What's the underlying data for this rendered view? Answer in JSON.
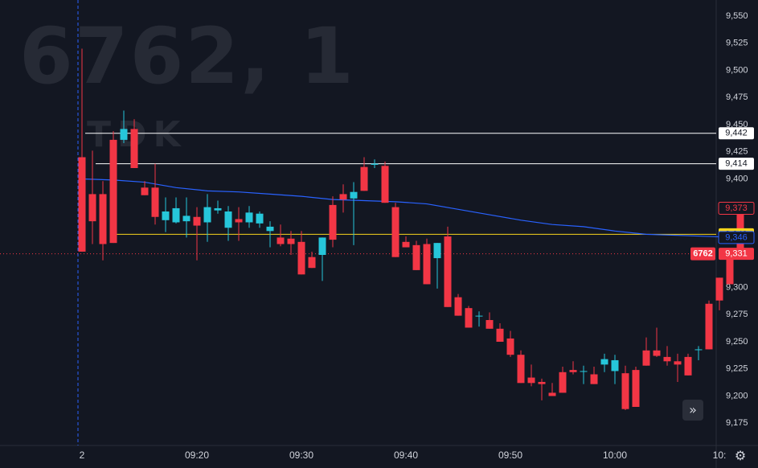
{
  "watermark": {
    "symbol": "6762, 1",
    "name": "TDK"
  },
  "colors": {
    "background": "#131722",
    "up": "#26c6da",
    "down": "#f23645",
    "ma": "#2962ff",
    "hline": "#ffffff",
    "yellow_line": "#f7d51d",
    "grid": "#1e222d",
    "text": "#d1d4dc"
  },
  "chart_data": {
    "type": "candlestick",
    "interval_minutes": 1,
    "y_range": [
      9160,
      9565
    ],
    "y_ticks": [
      "9,550",
      "9,525",
      "9,500",
      "9,475",
      "9,450",
      "9,425",
      "9,400",
      "9,300",
      "9,275",
      "9,250",
      "9,225",
      "9,200",
      "9,175"
    ],
    "y_tick_values": [
      9550,
      9525,
      9500,
      9475,
      9450,
      9425,
      9400,
      9300,
      9275,
      9250,
      9225,
      9200,
      9175
    ],
    "x_labels": [
      {
        "label": "2",
        "bar": 0
      },
      {
        "label": "09:20",
        "bar": 11
      },
      {
        "label": "09:30",
        "bar": 21
      },
      {
        "label": "09:40",
        "bar": 31
      },
      {
        "label": "09:50",
        "bar": 41
      },
      {
        "label": "10:00",
        "bar": 51
      },
      {
        "label": "10:",
        "bar": 61
      }
    ],
    "session_start_bar": 0,
    "candles": [
      [
        9420,
        9520,
        9333,
        9333
      ],
      [
        9386,
        9426,
        9340,
        9361
      ],
      [
        9386,
        9398,
        9325,
        9340
      ],
      [
        9436,
        9444,
        9341,
        9341
      ],
      [
        9436,
        9463,
        9433,
        9446
      ],
      [
        9446,
        9455,
        9410,
        9410
      ],
      [
        9392,
        9398,
        9385,
        9385
      ],
      [
        9392,
        9414,
        9358,
        9365
      ],
      [
        9362,
        9383,
        9351,
        9370
      ],
      [
        9360,
        9383,
        9359,
        9373
      ],
      [
        9361,
        9383,
        9346,
        9366
      ],
      [
        9365,
        9374,
        9325,
        9357
      ],
      [
        9360,
        9386,
        9342,
        9374
      ],
      [
        9371,
        9380,
        9368,
        9373
      ],
      [
        9355,
        9375,
        9343,
        9370
      ],
      [
        9363,
        9374,
        9343,
        9360
      ],
      [
        9360,
        9375,
        9355,
        9369
      ],
      [
        9359,
        9370,
        9355,
        9368
      ],
      [
        9352,
        9361,
        9337,
        9356
      ],
      [
        9346,
        9358,
        9338,
        9340
      ],
      [
        9345,
        9352,
        9330,
        9340
      ],
      [
        9342,
        9352,
        9312,
        9312
      ],
      [
        9328,
        9333,
        9318,
        9318
      ],
      [
        9330,
        9346,
        9306,
        9346
      ],
      [
        9376,
        9384,
        9337,
        9344
      ],
      [
        9386,
        9395,
        9369,
        9381
      ],
      [
        9382,
        9397,
        9339,
        9388
      ],
      [
        9411,
        9420,
        9389,
        9389
      ],
      [
        9413,
        9418,
        9410,
        9414
      ],
      [
        9412,
        9416,
        9378,
        9378
      ],
      [
        9374,
        9378,
        9328,
        9328
      ],
      [
        9342,
        9347,
        9337,
        9337
      ],
      [
        9339,
        9343,
        9316,
        9316
      ],
      [
        9340,
        9345,
        9303,
        9303
      ],
      [
        9327,
        9341,
        9299,
        9341
      ],
      [
        9347,
        9356,
        9282,
        9282
      ],
      [
        9291,
        9294,
        9274,
        9274
      ],
      [
        9281,
        9283,
        9263,
        9263
      ],
      [
        9274,
        9278,
        9264,
        9274
      ],
      [
        9270,
        9277,
        9262,
        9262
      ],
      [
        9262,
        9267,
        9250,
        9250
      ],
      [
        9253,
        9260,
        9236,
        9238
      ],
      [
        9238,
        9242,
        9212,
        9212
      ],
      [
        9217,
        9229,
        9209,
        9212
      ],
      [
        9213,
        9216,
        9196,
        9211
      ],
      [
        9203,
        9212,
        9200,
        9200
      ],
      [
        9222,
        9227,
        9203,
        9203
      ],
      [
        9224,
        9232,
        9220,
        9222
      ],
      [
        9223,
        9228,
        9211,
        9223
      ],
      [
        9220,
        9227,
        9211,
        9211
      ],
      [
        9229,
        9239,
        9222,
        9234
      ],
      [
        9223,
        9238,
        9211,
        9233
      ],
      [
        9221,
        9228,
        9187,
        9188
      ],
      [
        9224,
        9227,
        9190,
        9190
      ],
      [
        9242,
        9254,
        9228,
        9228
      ],
      [
        9242,
        9263,
        9236,
        9237
      ],
      [
        9236,
        9246,
        9228,
        9232
      ],
      [
        9232,
        9239,
        9213,
        9229
      ],
      [
        9236,
        9239,
        9219,
        9219
      ],
      [
        9243,
        9246,
        9233,
        9243
      ],
      [
        9285,
        9288,
        9243,
        9243
      ],
      [
        9309,
        9309,
        9279,
        9288
      ],
      [
        9329,
        9329,
        9303,
        9303
      ],
      [
        9373,
        9373,
        9331,
        9331
      ]
    ],
    "moving_average": [
      [
        0,
        9400
      ],
      [
        3,
        9399
      ],
      [
        6,
        9397
      ],
      [
        9,
        9392
      ],
      [
        12,
        9389
      ],
      [
        15,
        9388
      ],
      [
        18,
        9386
      ],
      [
        21,
        9384
      ],
      [
        24,
        9381
      ],
      [
        27,
        9380
      ],
      [
        30,
        9379
      ],
      [
        33,
        9377
      ],
      [
        36,
        9372
      ],
      [
        39,
        9367
      ],
      [
        42,
        9362
      ],
      [
        45,
        9358
      ],
      [
        48,
        9356
      ],
      [
        51,
        9352
      ],
      [
        54,
        9349
      ],
      [
        57,
        9348
      ],
      [
        60,
        9347
      ],
      [
        63,
        9346
      ]
    ],
    "horizontal_lines": [
      {
        "value": 9442,
        "label": "9,442",
        "color": "#ffffff",
        "start_bar": 0
      },
      {
        "value": 9414,
        "label": "9,414",
        "color": "#ffffff",
        "start_bar": 1
      },
      {
        "value": 9349,
        "label": "9,349",
        "color": "#f7d51d",
        "start_bar": 3
      }
    ],
    "price_tags": [
      {
        "value": 9373,
        "label": "9,373",
        "style": "outline-red"
      },
      {
        "value": 9346,
        "label": "9,346",
        "style": "outline-blue"
      },
      {
        "value": 9331,
        "label": "9,331",
        "style": "solid-red"
      }
    ],
    "current_price": 9331,
    "symbol_tag": "6762"
  },
  "controls": {
    "scroll_to_realtime": "»",
    "settings": "⚙"
  }
}
